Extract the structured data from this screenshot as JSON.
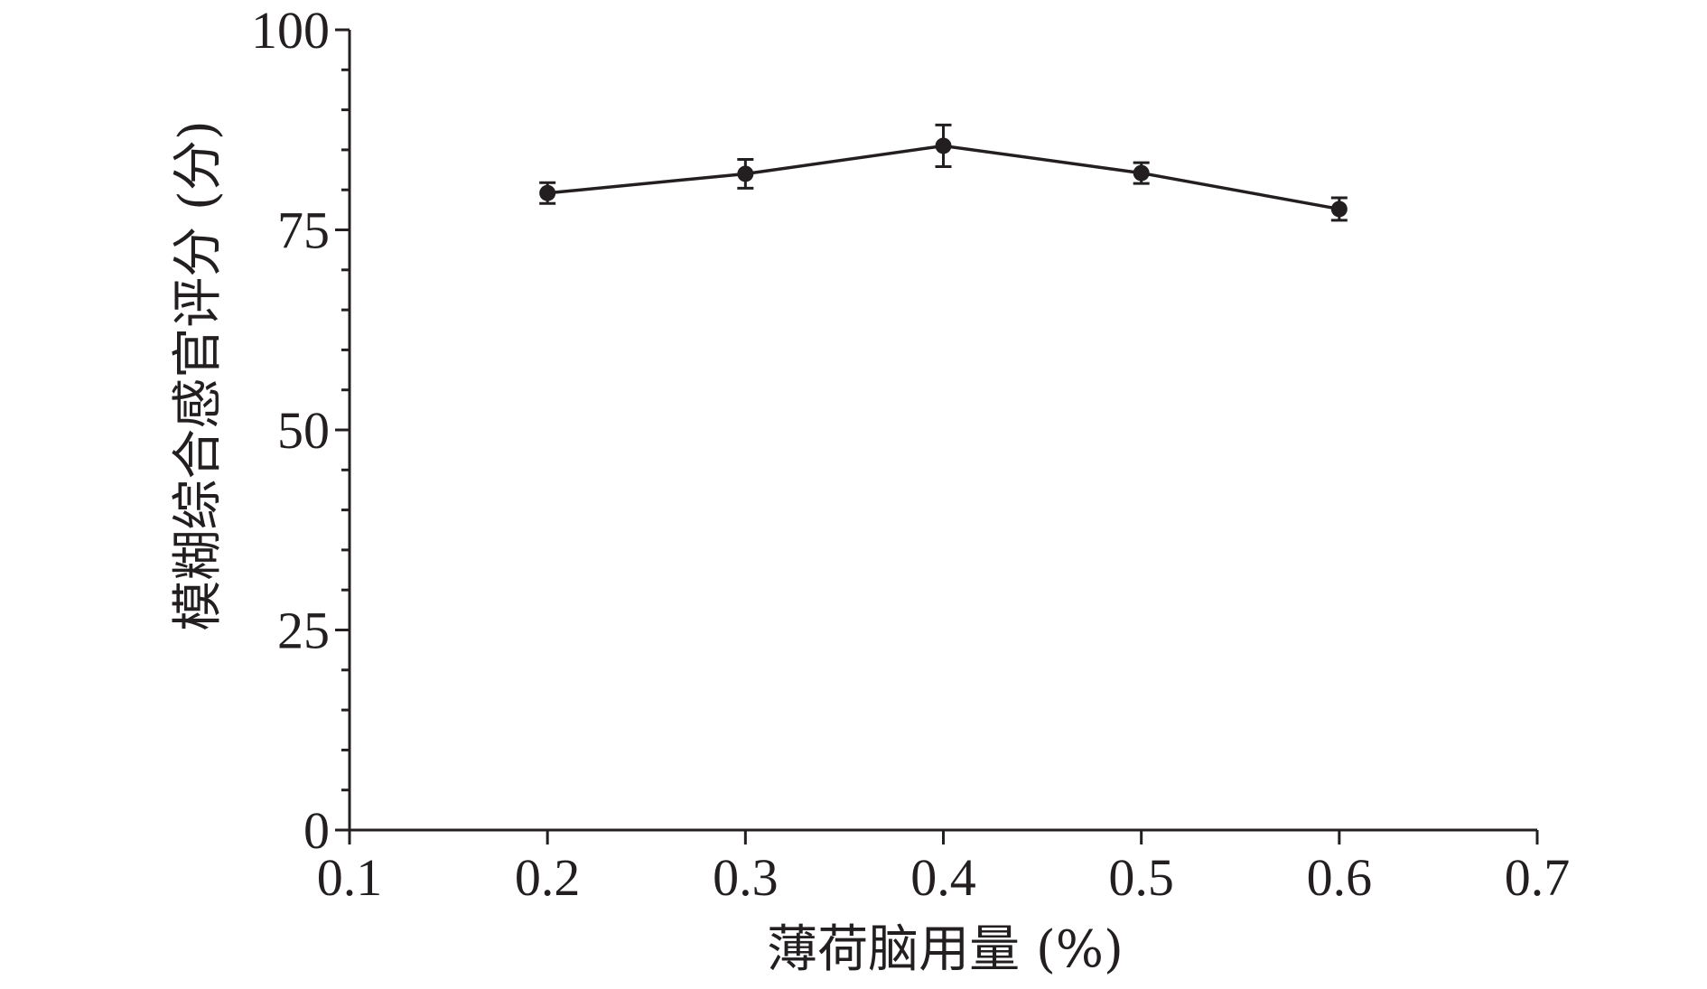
{
  "chart_data": {
    "type": "line",
    "title": "",
    "xlabel": "薄荷脑用量 (%)",
    "ylabel": "模糊综合感官评分 (分)",
    "xlim": [
      0.1,
      0.7
    ],
    "ylim": [
      0,
      100
    ],
    "x_ticks": [
      "0.1",
      "0.2",
      "0.3",
      "0.4",
      "0.5",
      "0.6",
      "0.7"
    ],
    "y_ticks": [
      "0",
      "25",
      "50",
      "75",
      "100"
    ],
    "grid": false,
    "series": [
      {
        "x": [
          0.2,
          0.3,
          0.4,
          0.5,
          0.6
        ],
        "y": [
          79.6,
          82.0,
          85.5,
          82.1,
          77.6
        ],
        "error": [
          1.3,
          1.8,
          2.6,
          1.3,
          1.4
        ]
      }
    ],
    "color": "#231f20"
  }
}
